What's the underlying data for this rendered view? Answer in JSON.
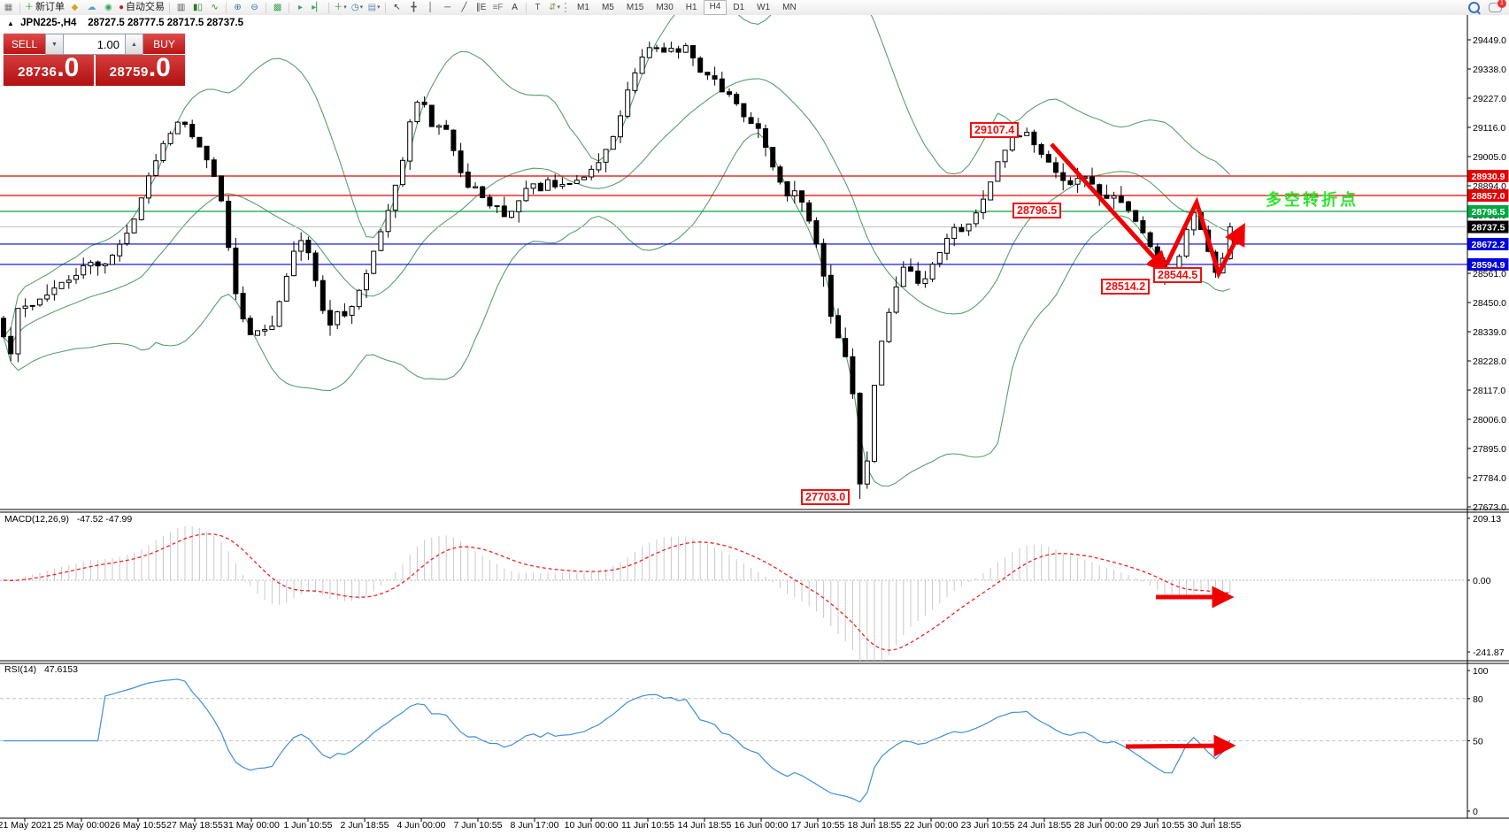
{
  "toolbar": {
    "groups": [
      [
        {
          "name": "chart-window-icon",
          "glyph": "▦",
          "color": "#777777"
        }
      ],
      [
        {
          "name": "new-order-button",
          "glyph": "＋",
          "color": "#1f9d1f",
          "label": "新订单"
        },
        {
          "name": "market-icon",
          "glyph": "◆",
          "color": "#d9a520"
        },
        {
          "name": "signals-icon",
          "glyph": "☁",
          "color": "#5b9bd5"
        },
        {
          "name": "broadcast-icon",
          "glyph": "◉",
          "color": "#3aa655"
        },
        {
          "name": "autotrading-button",
          "glyph": "●",
          "color": "#cc2222",
          "label": "自动交易"
        }
      ],
      [
        {
          "name": "bar-chart-icon",
          "glyph": "▥",
          "color": "#555555"
        },
        {
          "name": "candlestick-chart-icon",
          "glyph": "▮▯",
          "color": "#2a7d2a"
        },
        {
          "name": "line-chart-icon",
          "glyph": "∿",
          "color": "#3a7d3a"
        }
      ],
      [
        {
          "name": "zoom-in-button",
          "glyph": "⊕",
          "color": "#3b6ea5"
        },
        {
          "name": "zoom-out-button",
          "glyph": "⊖",
          "color": "#3b6ea5"
        }
      ],
      [
        {
          "name": "tile-windows-icon",
          "glyph": "▩",
          "color": "#3aa655"
        }
      ],
      [
        {
          "name": "auto-scroll-icon",
          "glyph": "▸",
          "color": "#3aa655"
        },
        {
          "name": "chart-shift-icon",
          "glyph": "▸▏",
          "color": "#3aa655"
        }
      ],
      [
        {
          "name": "indicators-button",
          "glyph": "＋",
          "color": "#1f9d1f",
          "dropdown": true
        },
        {
          "name": "periods-button",
          "glyph": "◷",
          "color": "#3b6ea5",
          "dropdown": true
        },
        {
          "name": "templates-button",
          "glyph": "▤",
          "color": "#6a8caf",
          "dropdown": true
        }
      ],
      [
        {
          "name": "cursor-icon",
          "glyph": "↖",
          "color": "#333333"
        },
        {
          "name": "crosshair-icon",
          "glyph": "╋",
          "color": "#555555"
        },
        {
          "name": "vertical-line-icon",
          "glyph": "│",
          "color": "#444444"
        },
        {
          "name": "horizontal-line-icon",
          "glyph": "─",
          "color": "#444444"
        },
        {
          "name": "trendline-icon",
          "glyph": "╱",
          "color": "#444444"
        },
        {
          "name": "channel-icon",
          "glyph": "∥E",
          "color": "#444444"
        },
        {
          "name": "fibonacci-icon",
          "glyph": "≡F",
          "color": "#777777"
        },
        {
          "name": "text-icon",
          "glyph": "A",
          "color": "#333333"
        }
      ],
      [
        {
          "name": "label-icon",
          "glyph": "T",
          "color": "#555555"
        },
        {
          "name": "shapes-button",
          "glyph": "⇵",
          "color": "#8a9a55",
          "dropdown": true
        }
      ]
    ],
    "timeframes": {
      "items": [
        "M1",
        "M5",
        "M15",
        "M30",
        "H1",
        "H4",
        "D1",
        "W1",
        "MN"
      ],
      "active": "H4"
    },
    "chat_badge": "1"
  },
  "window": {
    "collapse_icon": "▲",
    "symbol_title": "JPN225-,H4",
    "quotes": "28727.5 28777.5 28717.5 28737.5"
  },
  "trade_panel": {
    "sell_label": "SELL",
    "buy_label": "BUY",
    "volume": "1.00",
    "spin_down_icon": "▼",
    "spin_up_icon": "▲",
    "sell_price": "28736",
    "sell_price_frac": ".0",
    "buy_price": "28759",
    "buy_price_frac": ".0"
  },
  "main_chart": {
    "y_ticks": [
      "29449.0",
      "29338.0",
      "29227.0",
      "29116.0",
      "29005.0",
      "28894.0",
      "28783.0",
      "28672.0",
      "28561.0",
      "28450.0",
      "28339.0",
      "28228.0",
      "28117.0",
      "28006.0",
      "27895.0",
      "27784.0",
      "27673.0"
    ],
    "hlines": [
      {
        "price": 28930.9,
        "label": "28930.9",
        "color": "#e60000"
      },
      {
        "price": 28857.0,
        "label": "28857.0",
        "color": "#e60000"
      },
      {
        "price": 28796.5,
        "label": "28796.5",
        "color": "#00a843"
      },
      {
        "price": 28672.2,
        "label": "28672.2",
        "color": "#0000dd"
      },
      {
        "price": 28594.9,
        "label": "28594.9",
        "color": "#0000dd"
      }
    ],
    "current_price": {
      "price": 28737.5,
      "label": "28737.5",
      "line_color": "#c0c0c0",
      "badge_color": "#000000"
    },
    "callouts": [
      {
        "text": "29107.4"
      },
      {
        "text": "28796.5"
      },
      {
        "text": "28514.2"
      },
      {
        "text": "28544.5"
      },
      {
        "text": "27703.0"
      }
    ],
    "annotation": {
      "text": "多空转折点",
      "color": "#2ee62e"
    },
    "bollinger_color": "#57a06e",
    "arrow_color": "#f00000",
    "price_path": [
      [
        0,
        28390
      ],
      [
        10,
        28210
      ],
      [
        20,
        28420
      ],
      [
        40,
        28450
      ],
      [
        60,
        28500
      ],
      [
        80,
        28540
      ],
      [
        100,
        28600
      ],
      [
        115,
        28590
      ],
      [
        130,
        28640
      ],
      [
        145,
        28720
      ],
      [
        160,
        28850
      ],
      [
        175,
        28990
      ],
      [
        190,
        29090
      ],
      [
        205,
        29160
      ],
      [
        215,
        29100
      ],
      [
        228,
        29020
      ],
      [
        240,
        28960
      ],
      [
        252,
        28820
      ],
      [
        262,
        28550
      ],
      [
        272,
        28400
      ],
      [
        282,
        28330
      ],
      [
        295,
        28350
      ],
      [
        308,
        28370
      ],
      [
        320,
        28500
      ],
      [
        332,
        28650
      ],
      [
        342,
        28690
      ],
      [
        352,
        28620
      ],
      [
        362,
        28440
      ],
      [
        372,
        28350
      ],
      [
        382,
        28420
      ],
      [
        392,
        28400
      ],
      [
        402,
        28470
      ],
      [
        412,
        28550
      ],
      [
        422,
        28640
      ],
      [
        432,
        28730
      ],
      [
        442,
        28830
      ],
      [
        452,
        28950
      ],
      [
        460,
        29080
      ],
      [
        468,
        29200
      ],
      [
        476,
        29230
      ],
      [
        484,
        29150
      ],
      [
        492,
        29100
      ],
      [
        500,
        29160
      ],
      [
        508,
        29080
      ],
      [
        516,
        28990
      ],
      [
        524,
        28910
      ],
      [
        532,
        28870
      ],
      [
        540,
        28890
      ],
      [
        548,
        28840
      ],
      [
        556,
        28800
      ],
      [
        564,
        28810
      ],
      [
        572,
        28770
      ],
      [
        580,
        28800
      ],
      [
        590,
        28870
      ],
      [
        600,
        28900
      ],
      [
        610,
        28880
      ],
      [
        620,
        28910
      ],
      [
        630,
        28880
      ],
      [
        640,
        28900
      ],
      [
        650,
        28910
      ],
      [
        660,
        28930
      ],
      [
        670,
        28960
      ],
      [
        680,
        29000
      ],
      [
        690,
        29060
      ],
      [
        700,
        29150
      ],
      [
        710,
        29260
      ],
      [
        720,
        29340
      ],
      [
        730,
        29400
      ],
      [
        740,
        29430
      ],
      [
        748,
        29390
      ],
      [
        756,
        29430
      ],
      [
        764,
        29400
      ],
      [
        772,
        29430
      ],
      [
        780,
        29410
      ],
      [
        788,
        29340
      ],
      [
        796,
        29290
      ],
      [
        804,
        29330
      ],
      [
        812,
        29280
      ],
      [
        820,
        29220
      ],
      [
        828,
        29250
      ],
      [
        836,
        29180
      ],
      [
        844,
        29120
      ],
      [
        852,
        29150
      ],
      [
        860,
        29080
      ],
      [
        868,
        29010
      ],
      [
        876,
        28950
      ],
      [
        884,
        28890
      ],
      [
        892,
        28850
      ],
      [
        900,
        28880
      ],
      [
        908,
        28820
      ],
      [
        916,
        28750
      ],
      [
        924,
        28650
      ],
      [
        932,
        28520
      ],
      [
        940,
        28380
      ],
      [
        948,
        28300
      ],
      [
        956,
        28240
      ],
      [
        964,
        28100
      ],
      [
        972,
        27850
      ],
      [
        978,
        27760
      ],
      [
        984,
        28060
      ],
      [
        992,
        28230
      ],
      [
        1000,
        28360
      ],
      [
        1008,
        28450
      ],
      [
        1016,
        28540
      ],
      [
        1024,
        28600
      ],
      [
        1032,
        28560
      ],
      [
        1040,
        28500
      ],
      [
        1048,
        28560
      ],
      [
        1056,
        28620
      ],
      [
        1064,
        28660
      ],
      [
        1072,
        28700
      ],
      [
        1080,
        28740
      ],
      [
        1088,
        28720
      ],
      [
        1096,
        28760
      ],
      [
        1104,
        28800
      ],
      [
        1112,
        28860
      ],
      [
        1120,
        28920
      ],
      [
        1128,
        28980
      ],
      [
        1136,
        29030
      ],
      [
        1144,
        29070
      ],
      [
        1152,
        29090
      ],
      [
        1160,
        29105
      ],
      [
        1168,
        29060
      ],
      [
        1176,
        29020
      ],
      [
        1184,
        28990
      ],
      [
        1192,
        28950
      ],
      [
        1200,
        28920
      ],
      [
        1208,
        28890
      ],
      [
        1216,
        28920
      ],
      [
        1224,
        28940
      ],
      [
        1232,
        28900
      ],
      [
        1240,
        28870
      ],
      [
        1248,
        28840
      ],
      [
        1256,
        28860
      ],
      [
        1264,
        28840
      ],
      [
        1272,
        28810
      ],
      [
        1280,
        28780
      ],
      [
        1288,
        28740
      ],
      [
        1296,
        28690
      ],
      [
        1304,
        28640
      ],
      [
        1312,
        28580
      ],
      [
        1318,
        28530
      ],
      [
        1326,
        28560
      ],
      [
        1334,
        28650
      ],
      [
        1342,
        28740
      ],
      [
        1348,
        28800
      ],
      [
        1354,
        28770
      ],
      [
        1360,
        28700
      ],
      [
        1368,
        28620
      ],
      [
        1375,
        28560
      ],
      [
        1382,
        28620
      ],
      [
        1388,
        28700
      ],
      [
        1396,
        28737
      ]
    ]
  },
  "macd": {
    "name": "MACD(12,26,9)",
    "values": "-47.52 -47.99",
    "y_labels": [
      {
        "v": 209.13,
        "t": "209.13"
      },
      {
        "v": 0,
        "t": "0.00"
      },
      {
        "v": -241.87,
        "t": "-241.87"
      }
    ],
    "histogram_color": "#c9c9c9",
    "signal_color": "#ee2222"
  },
  "rsi": {
    "name": "RSI(14)",
    "value": "47.6153",
    "levels": [
      80,
      50
    ],
    "y_labels": [
      {
        "v": 100,
        "t": "100"
      },
      {
        "v": 80,
        "t": "80"
      },
      {
        "v": 50,
        "t": "50"
      },
      {
        "v": 0,
        "t": "0"
      }
    ],
    "line_color": "#3f8fd6"
  },
  "time_axis": {
    "labels": [
      "21 May 2021",
      "25 May 00:00",
      "26 May 10:55",
      "27 May 18:55",
      "31 May 00:00",
      "1 Jun 10:55",
      "2 Jun 18:55",
      "4 Jun 00:00",
      "7 Jun 10:55",
      "8 Jun 17:00",
      "10 Jun 00:00",
      "11 Jun 10:55",
      "14 Jun 18:55",
      "16 Jun 00:00",
      "17 Jun 10:55",
      "18 Jun 18:55",
      "22 Jun 00:00",
      "23 Jun 10:55",
      "24 Jun 18:55",
      "28 Jun 00:00",
      "29 Jun 10:55",
      "30 Jun 18:55"
    ]
  }
}
